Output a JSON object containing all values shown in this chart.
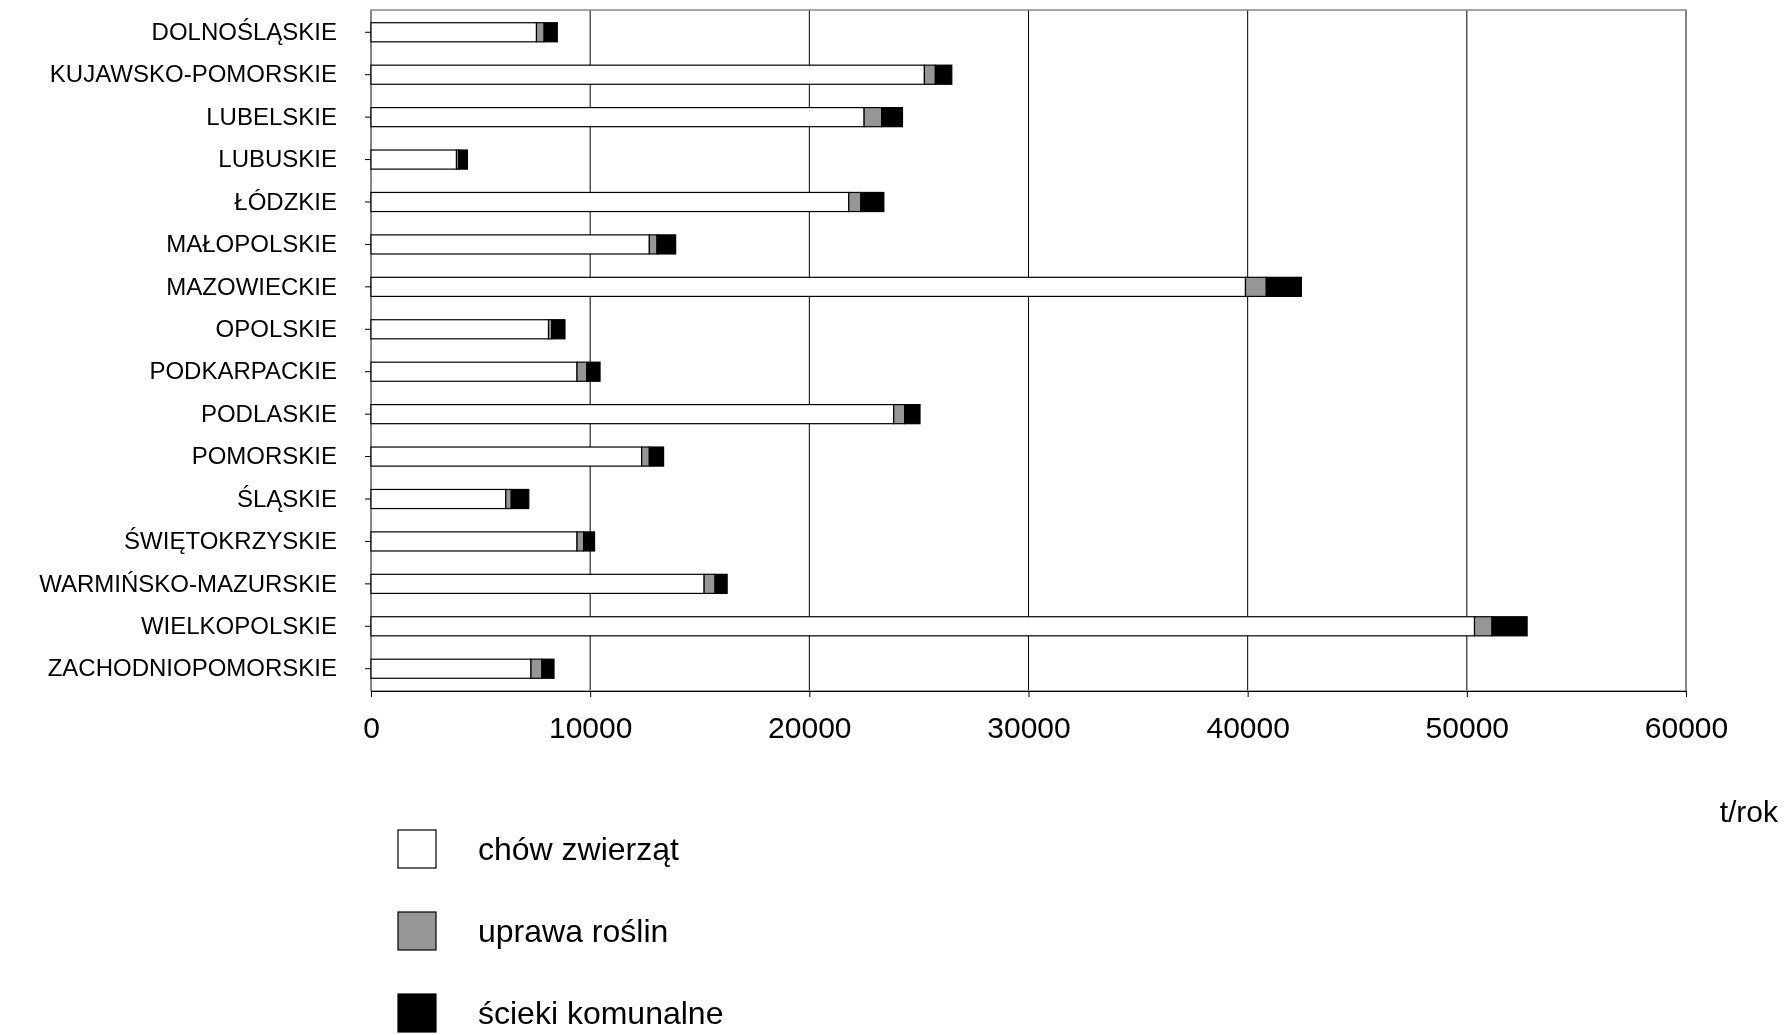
{
  "chart_data": {
    "type": "bar",
    "orientation": "horizontal",
    "stacked": true,
    "xlabel": "t/rok",
    "categories": [
      "DOLNOŚLĄSKIE",
      "KUJAWSKO-POMORSKIE",
      "LUBELSKIE",
      "LUBUSKIE",
      "ŁÓDZKIE",
      "MAŁOPOLSKIE",
      "MAZOWIECKIE",
      "OPOLSKIE",
      "PODKARPACKIE",
      "PODLASKIE",
      "POMORSKIE",
      "ŚLĄSKIE",
      "ŚWIĘTOKRZYSKIE",
      "WARMIŃSKO-MAZURSKIE",
      "WIELKOPOLSKIE",
      "ZACHODNIOPOMORSKIE"
    ],
    "series": [
      {
        "name": "chów zwierząt",
        "color": "#ffffff",
        "values": [
          7550,
          25250,
          22500,
          3900,
          21800,
          12700,
          39900,
          8100,
          9400,
          23850,
          12350,
          6150,
          9400,
          15200,
          50350,
          7300
        ]
      },
      {
        "name": "uprawa roślin",
        "color": "#969696",
        "values": [
          350,
          500,
          800,
          100,
          550,
          350,
          950,
          150,
          450,
          500,
          350,
          250,
          300,
          500,
          800,
          500
        ]
      },
      {
        "name": "ścieki komunalne",
        "color": "#000000",
        "values": [
          600,
          750,
          950,
          400,
          1050,
          850,
          1600,
          600,
          600,
          700,
          650,
          800,
          500,
          550,
          1600,
          550
        ]
      }
    ],
    "xlim": [
      0,
      60000
    ],
    "xticks": [
      0,
      10000,
      20000,
      30000,
      40000,
      50000,
      60000
    ],
    "grid": "x",
    "legend": "bottom"
  }
}
